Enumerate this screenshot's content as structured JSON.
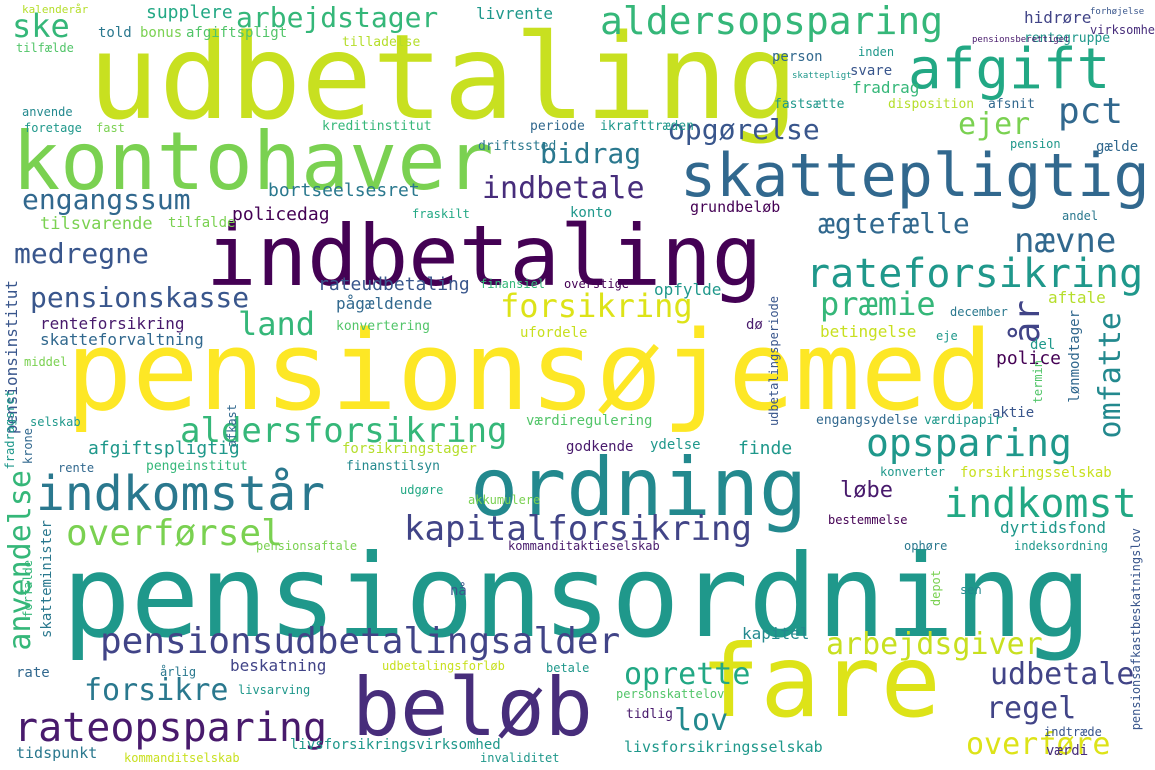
{
  "words": {
    "udbetaling": "udbetaling",
    "pensionsojemed": "pensionsøjemed",
    "pensionsordning": "pensionsordning",
    "kontohaver": "kontohaver",
    "indbetaling": "indbetaling",
    "ordning": "ordning",
    "fare": "fare",
    "belob": "beløb",
    "skattepligtig": "skattepligtig",
    "afgift": "afgift",
    "aldersopsparing": "aldersopsparing",
    "indkomstar": "indkomstår",
    "rateforsikring": "rateforsikring",
    "rateopsparing": "rateopsparing",
    "pensionsudbetalingsalder": "pensionsudbetalingsalder",
    "kapitalforsikring": "kapitalforsikring",
    "aldersforsikring": "aldersforsikring",
    "opsparing": "opsparing",
    "indkomst": "indkomst",
    "overforsel": "overførsel",
    "engangssum": "engangssum",
    "pensionskasse": "pensionskasse",
    "indbetale": "indbetale",
    "medregne": "medregne",
    "aegtefaelle": "ægtefælle",
    "naevne": "nævne",
    "arbejdstager": "arbejdstager",
    "opgorelse": "opgørelse",
    "bidrag": "bidrag",
    "ske": "ske",
    "pct": "pct",
    "ejer": "ejer",
    "forsikring": "forsikring",
    "praemie": "præmie",
    "land": "land",
    "ar": "år",
    "omfatte": "omfatte",
    "anvendelse": "anvendelse",
    "arbejdsgiver": "arbejdsgiver",
    "udbetale": "udbetale",
    "regel": "regel",
    "overfore": "overføre",
    "forsikre": "forsikre",
    "oprette": "oprette",
    "lov": "lov",
    "lobe": "løbe",
    "bortseelsesret": "bortseelsesret",
    "policedag": "policedag",
    "tilsvarende": "tilsvarende",
    "tilfalde1": "tilfalde",
    "konto": "konto",
    "grundbelob": "grundbeløb",
    "supplere": "supplere",
    "told": "told",
    "bonus": "bonus",
    "afgiftspligt": "afgiftspligt",
    "tilladelse": "tilladelse",
    "livrente": "livrente",
    "hidrore": "hidrøre",
    "virksomhed": "virksomhed",
    "rentegruppe": "rentegruppe",
    "person": "person",
    "inden": "inden",
    "svare": "svare",
    "fradrag": "fradrag",
    "fastsaette": "fastsætte",
    "disposition": "disposition",
    "afsnit": "afsnit",
    "periode": "periode",
    "ikrafttraeden": "ikrafttræden",
    "kreditinstitut": "kreditinstitut",
    "driftssted": "driftssted",
    "pension": "pension",
    "gaelde": "gælde",
    "kalenderar": "kalenderår",
    "tilfaelde": "tilfælde",
    "anvende": "anvende",
    "foretage": "foretage",
    "fast": "fast",
    "fraskilt": "fraskilt",
    "andel": "andel",
    "rateudbetaling": "rateudbetaling",
    "finansiel": "finansiel",
    "overstige": "overstige",
    "opfylde": "opfylde",
    "aftale": "aftale",
    "pagaeldende": "pågældende",
    "renteforsikring": "renteforsikring",
    "skatteforvaltning": "skatteforvaltning",
    "konvertering": "konvertering",
    "do": "dø",
    "december": "december",
    "eje": "eje",
    "ufordele": "ufordele",
    "betingelse": "betingelse",
    "police": "police",
    "del": "del",
    "lonmodtager": "lønmodtager",
    "termin": "termin",
    "pensionsinstitut": "pensionsinstitut",
    "middel": "middel",
    "fradragsret": "fradragsret",
    "selskab": "selskab",
    "krone": "krone",
    "afkast": "afkast",
    "aktie": "aktie",
    "vaerdiregulering": "værdiregulering",
    "engangsydelse": "engangsydelse",
    "vaerdipapir": "værdipapir",
    "afgiftspligtig": "afgiftspligtig",
    "forsikringstager": "forsikringstager",
    "godkende": "godkende",
    "ydelse": "ydelse",
    "finde": "finde",
    "rente": "rente",
    "pengeinstitut": "pengeinstitut",
    "finanstilsyn": "finanstilsyn",
    "konverter": "konverter",
    "forsikringsselskab": "forsikringsselskab",
    "udgore": "udgøre",
    "akkumulere": "akkumulere",
    "bestemmelse": "bestemmelse",
    "dyrtidsfond": "dyrtidsfond",
    "pensionsaftale": "pensionsaftale",
    "kommanditaktieselskab": "kommanditaktieselskab",
    "ophore": "ophøre",
    "depot": "depot",
    "indeksordning": "indeksordning",
    "skatteminister": "skatteminister",
    "forfalde": "forfalde",
    "na": "nå",
    "sen": "sen",
    "kapitel": "kapitel",
    "rate": "rate",
    "arlig": "årlig",
    "beskatning": "beskatning",
    "udbetalingsforlob": "udbetalingsforløb",
    "betale": "betale",
    "livsarving": "livsarving",
    "personskattelov": "personskattelov",
    "tidlig": "tidlig",
    "indtraede": "indtræde",
    "vaerdi": "værdi",
    "tidspunkt": "tidspunkt",
    "kommanditselskab": "kommanditselskab",
    "livsforsikringsvirksomhed": "livsforsikringsvirksomhed",
    "invaliditet": "invaliditet",
    "livsforsikringsselskab": "livsforsikringsselskab",
    "pensionsafkastbeskatningslov": "pensionsafkastbeskatningslov",
    "udbetalingsperiode": "udbetalingsperiode",
    "pensionsberettiget": "pensionsberettiget",
    "skattepligt": "skattepligt",
    "forhojelse": "forhøjelse"
  }
}
